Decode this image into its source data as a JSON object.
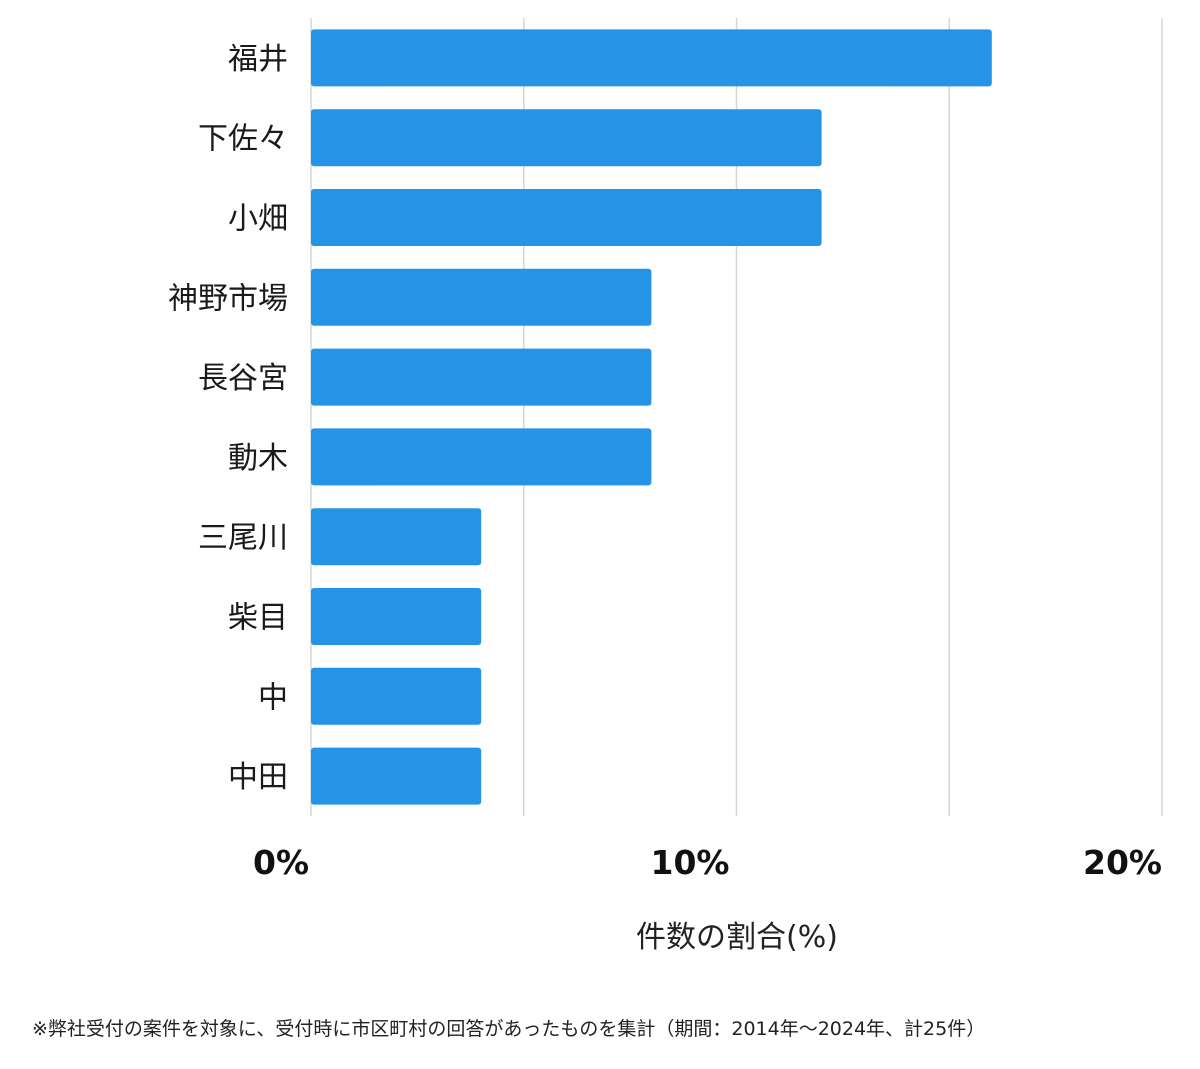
{
  "chart_data": {
    "type": "bar",
    "orientation": "horizontal",
    "categories": [
      "福井",
      "下佐々",
      "小畑",
      "神野市場",
      "長谷宮",
      "動木",
      "三尾川",
      "柴目",
      "中",
      "中田"
    ],
    "values": [
      16,
      12,
      12,
      8,
      8,
      8,
      4,
      4,
      4,
      4
    ],
    "xlabel": "件数の割合(%)",
    "xlim": [
      0,
      20
    ],
    "xticks": [
      {
        "value": 0,
        "label": "0%"
      },
      {
        "value": 10,
        "label": "10%"
      },
      {
        "value": 20,
        "label": "20%"
      }
    ],
    "gridlines": [
      0,
      5,
      10,
      15,
      20
    ],
    "bar_color": "#2694e6"
  },
  "footnote": "※弊社受付の案件を対象に、受付時に市区町村の回答があったものを集計（期間：2014年～2024年、計25件）"
}
